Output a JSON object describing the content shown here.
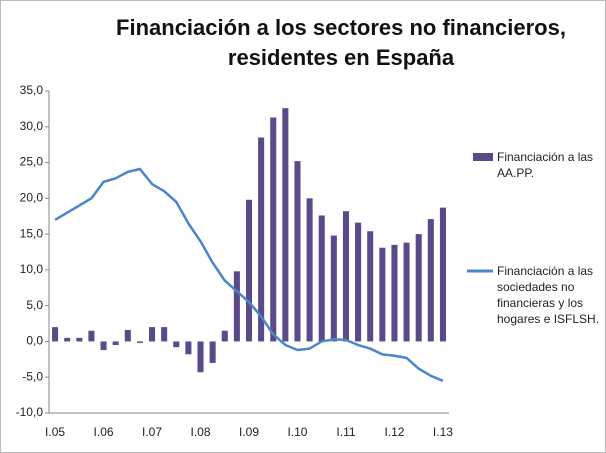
{
  "chart_data": {
    "type": "bar_line",
    "title": "Financiación a los sectores no financieros, residentes en España",
    "categories": [
      "I.05",
      null,
      null,
      null,
      "I.06",
      null,
      null,
      null,
      "I.07",
      null,
      null,
      null,
      "I.08",
      null,
      null,
      null,
      "I.09",
      null,
      null,
      null,
      "I.10",
      null,
      null,
      null,
      "I.11",
      null,
      null,
      null,
      "I.12",
      null,
      null,
      null,
      "I.13"
    ],
    "series": [
      {
        "name": "Financiación a las AA.PP.",
        "type": "bar",
        "color": "#5b4a8a",
        "values": [
          2.0,
          0.5,
          0.5,
          1.5,
          -1.2,
          -0.5,
          1.6,
          -0.2,
          2.0,
          2.0,
          -0.8,
          -1.8,
          -4.3,
          -3.0,
          1.5,
          9.8,
          19.8,
          28.5,
          31.3,
          32.6,
          25.2,
          20.0,
          17.6,
          14.8,
          18.2,
          16.6,
          15.4,
          13.1,
          13.5,
          13.8,
          15.0,
          17.1,
          18.7
        ]
      },
      {
        "name": "Financiación a las sociedades no financieras y los hogares e ISFLSH.",
        "type": "line",
        "color": "#4a86c8",
        "values": [
          17.0,
          18.0,
          19.0,
          20.0,
          22.3,
          22.8,
          23.7,
          24.1,
          22.0,
          21.0,
          19.5,
          16.5,
          14.0,
          11.0,
          8.5,
          7.0,
          5.5,
          3.5,
          1.0,
          -0.5,
          -1.2,
          -1.0,
          0.0,
          0.3,
          0.2,
          -0.5,
          -1.0,
          -1.8,
          -2.0,
          -2.3,
          -3.8,
          -4.8,
          -5.5
        ]
      }
    ],
    "ylim": [
      -10,
      35
    ],
    "yticks": [
      {
        "value": -10,
        "label": "-10,0"
      },
      {
        "value": -5,
        "label": "-5,0"
      },
      {
        "value": 0,
        "label": "0,0"
      },
      {
        "value": 5,
        "label": "5,0"
      },
      {
        "value": 10,
        "label": "10,0"
      },
      {
        "value": 15,
        "label": "15,0"
      },
      {
        "value": 20,
        "label": "20,0"
      },
      {
        "value": 25,
        "label": "25,0"
      },
      {
        "value": 30,
        "label": "30,0"
      },
      {
        "value": 35,
        "label": "35,0"
      }
    ],
    "grid": false
  }
}
